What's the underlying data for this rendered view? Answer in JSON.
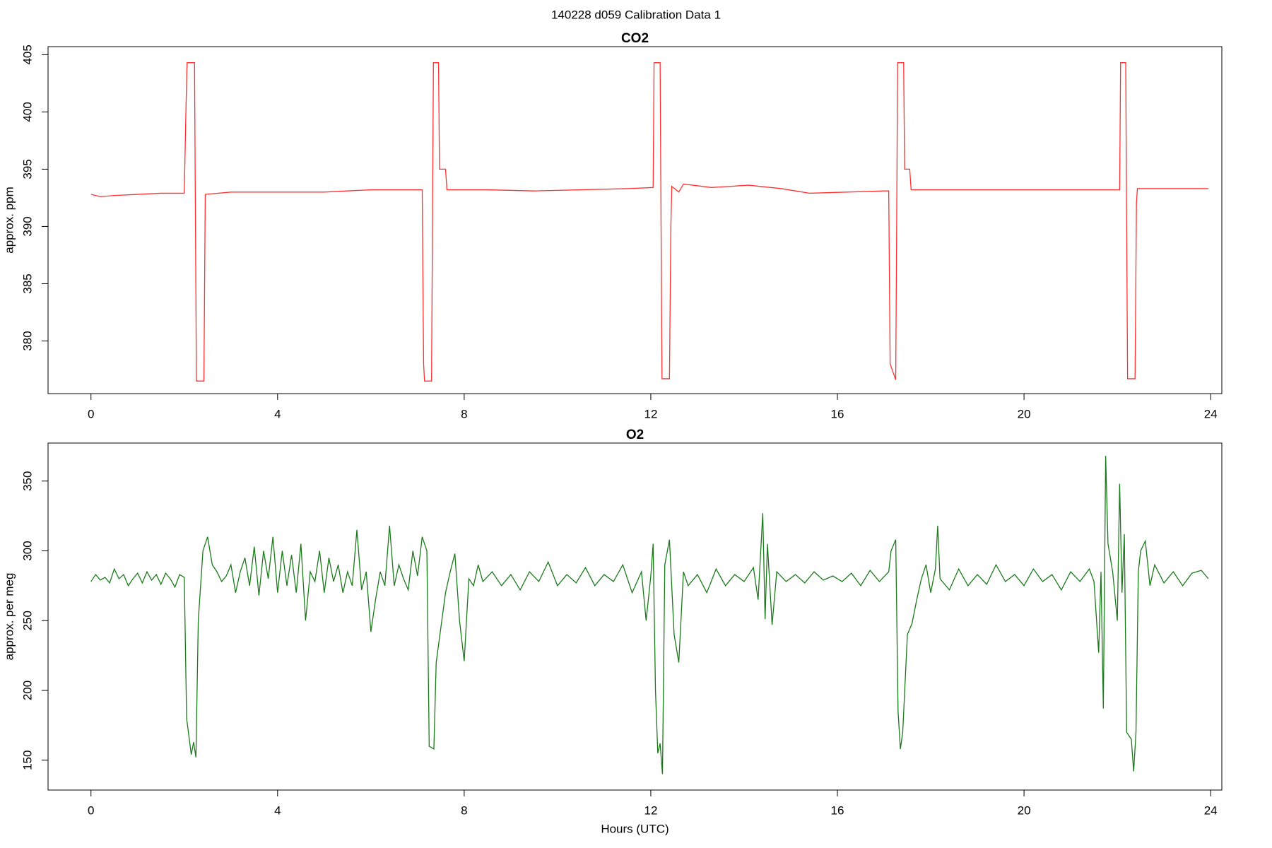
{
  "title": "140228   d059   Calibration Data 1",
  "chart_data": [
    {
      "type": "line",
      "title": "CO2",
      "y_label": "approx. ppm",
      "xlim": [
        -0.92,
        24.24
      ],
      "xticks": [
        0,
        4,
        8,
        12,
        16,
        20,
        24
      ],
      "ylim": [
        375.4,
        405.7
      ],
      "yticks": [
        380,
        385,
        390,
        395,
        400,
        405
      ],
      "series": [
        {
          "name": "CO2",
          "color": "#ff3030",
          "x": [
            0,
            0.2,
            0.5,
            1.0,
            1.5,
            2.0,
            2.04,
            2.06,
            2.22,
            2.24,
            2.26,
            2.42,
            2.45,
            3.0,
            4.0,
            5.0,
            6.0,
            7.1,
            7.13,
            7.15,
            7.3,
            7.32,
            7.34,
            7.45,
            7.47,
            7.6,
            7.63,
            8.5,
            9.5,
            10.5,
            11.5,
            12.05,
            12.07,
            12.2,
            12.22,
            12.24,
            12.4,
            12.43,
            12.45,
            12.6,
            12.7,
            13.3,
            14.1,
            14.8,
            15.4,
            16.2,
            17.0,
            17.1,
            17.13,
            17.25,
            17.27,
            17.29,
            17.42,
            17.44,
            17.55,
            17.58,
            18.5,
            19.5,
            20.5,
            21.5,
            22.05,
            22.07,
            22.18,
            22.2,
            22.22,
            22.38,
            22.41,
            22.43,
            23.0,
            23.95
          ],
          "values": [
            392.8,
            392.6,
            392.7,
            392.8,
            392.9,
            392.9,
            401,
            404.3,
            404.3,
            390,
            376.5,
            376.5,
            392.8,
            393.0,
            393.0,
            393.0,
            393.2,
            393.2,
            378,
            376.5,
            376.5,
            390,
            404.3,
            404.3,
            395.0,
            395.0,
            393.2,
            393.2,
            393.1,
            393.2,
            393.3,
            393.4,
            404.3,
            404.3,
            390,
            376.7,
            376.7,
            390,
            393.5,
            393.0,
            393.7,
            393.4,
            393.6,
            393.3,
            392.9,
            393.0,
            393.1,
            393.1,
            378,
            376.6,
            390,
            404.3,
            404.3,
            395.0,
            395.0,
            393.2,
            393.2,
            393.2,
            393.2,
            393.2,
            393.2,
            404.3,
            404.3,
            390,
            376.7,
            376.7,
            392,
            393.3,
            393.3,
            393.3
          ]
        }
      ]
    },
    {
      "type": "line",
      "title": "O2",
      "y_label": "approx. per meg",
      "x_label": "Hours (UTC)",
      "xlim": [
        -0.92,
        24.24
      ],
      "xticks": [
        0,
        4,
        8,
        12,
        16,
        20,
        24
      ],
      "ylim": [
        128.6,
        377.2
      ],
      "yticks": [
        150,
        200,
        250,
        300,
        350
      ],
      "series": [
        {
          "name": "O2",
          "color": "#1a7a1a",
          "x": [
            0,
            0.1,
            0.2,
            0.3,
            0.4,
            0.5,
            0.6,
            0.7,
            0.8,
            0.9,
            1.0,
            1.1,
            1.2,
            1.3,
            1.4,
            1.5,
            1.6,
            1.7,
            1.8,
            1.9,
            2.0,
            2.05,
            2.15,
            2.2,
            2.25,
            2.3,
            2.4,
            2.5,
            2.6,
            2.7,
            2.8,
            2.9,
            3.0,
            3.1,
            3.2,
            3.3,
            3.4,
            3.5,
            3.6,
            3.7,
            3.8,
            3.9,
            4.0,
            4.1,
            4.2,
            4.3,
            4.4,
            4.5,
            4.6,
            4.7,
            4.8,
            4.9,
            5.0,
            5.1,
            5.2,
            5.3,
            5.4,
            5.5,
            5.6,
            5.7,
            5.8,
            5.9,
            6.0,
            6.1,
            6.2,
            6.3,
            6.4,
            6.5,
            6.6,
            6.7,
            6.8,
            6.9,
            7.0,
            7.1,
            7.2,
            7.25,
            7.35,
            7.4,
            7.5,
            7.6,
            7.7,
            7.8,
            7.9,
            8.0,
            8.1,
            8.2,
            8.3,
            8.4,
            8.6,
            8.8,
            9.0,
            9.2,
            9.4,
            9.6,
            9.8,
            10.0,
            10.2,
            10.4,
            10.6,
            10.8,
            11.0,
            11.2,
            11.4,
            11.6,
            11.8,
            11.9,
            12.0,
            12.05,
            12.1,
            12.15,
            12.2,
            12.25,
            12.3,
            12.4,
            12.5,
            12.6,
            12.7,
            12.8,
            13.0,
            13.2,
            13.4,
            13.6,
            13.8,
            14.0,
            14.2,
            14.3,
            14.4,
            14.45,
            14.5,
            14.6,
            14.7,
            14.9,
            15.1,
            15.3,
            15.5,
            15.7,
            15.9,
            16.1,
            16.3,
            16.5,
            16.7,
            16.9,
            17.1,
            17.15,
            17.25,
            17.3,
            17.35,
            17.4,
            17.5,
            17.6,
            17.7,
            17.8,
            17.9,
            18.0,
            18.1,
            18.15,
            18.2,
            18.4,
            18.6,
            18.8,
            19.0,
            19.2,
            19.4,
            19.6,
            19.8,
            20.0,
            20.2,
            20.4,
            20.6,
            20.8,
            21.0,
            21.2,
            21.4,
            21.5,
            21.6,
            21.65,
            21.7,
            21.75,
            21.8,
            21.9,
            22.0,
            22.05,
            22.1,
            22.15,
            22.2,
            22.3,
            22.35,
            22.4,
            22.45,
            22.5,
            22.6,
            22.7,
            22.8,
            23.0,
            23.2,
            23.4,
            23.6,
            23.8,
            23.95
          ],
          "values": [
            278,
            283,
            279,
            281,
            277,
            287,
            280,
            283,
            275,
            280,
            284,
            277,
            285,
            279,
            283,
            276,
            284,
            280,
            274,
            283,
            281,
            180,
            154,
            163,
            152,
            250,
            300,
            310,
            290,
            285,
            278,
            282,
            290,
            270,
            285,
            295,
            275,
            303,
            268,
            300,
            280,
            310,
            270,
            300,
            275,
            297,
            270,
            305,
            250,
            285,
            278,
            300,
            270,
            295,
            278,
            290,
            270,
            285,
            275,
            315,
            272,
            285,
            242,
            265,
            285,
            275,
            318,
            275,
            290,
            280,
            272,
            300,
            282,
            310,
            300,
            160,
            158,
            220,
            245,
            270,
            285,
            298,
            250,
            221,
            280,
            275,
            290,
            278,
            285,
            275,
            283,
            272,
            285,
            278,
            292,
            275,
            283,
            277,
            288,
            275,
            283,
            278,
            290,
            270,
            285,
            250,
            282,
            305,
            200,
            155,
            162,
            140,
            290,
            308,
            240,
            220,
            285,
            275,
            283,
            270,
            287,
            275,
            283,
            278,
            288,
            265,
            327,
            251,
            305,
            247,
            285,
            278,
            283,
            277,
            285,
            279,
            282,
            278,
            284,
            275,
            286,
            278,
            285,
            300,
            308,
            185,
            158,
            170,
            240,
            248,
            265,
            280,
            290,
            270,
            287,
            318,
            280,
            272,
            287,
            275,
            283,
            276,
            290,
            278,
            283,
            275,
            287,
            278,
            283,
            272,
            285,
            278,
            287,
            278,
            227,
            285,
            187,
            368,
            305,
            285,
            250,
            348,
            270,
            312,
            170,
            165,
            142,
            170,
            285,
            300,
            307,
            275,
            290,
            277,
            285,
            275,
            284,
            286,
            280
          ]
        }
      ]
    }
  ]
}
